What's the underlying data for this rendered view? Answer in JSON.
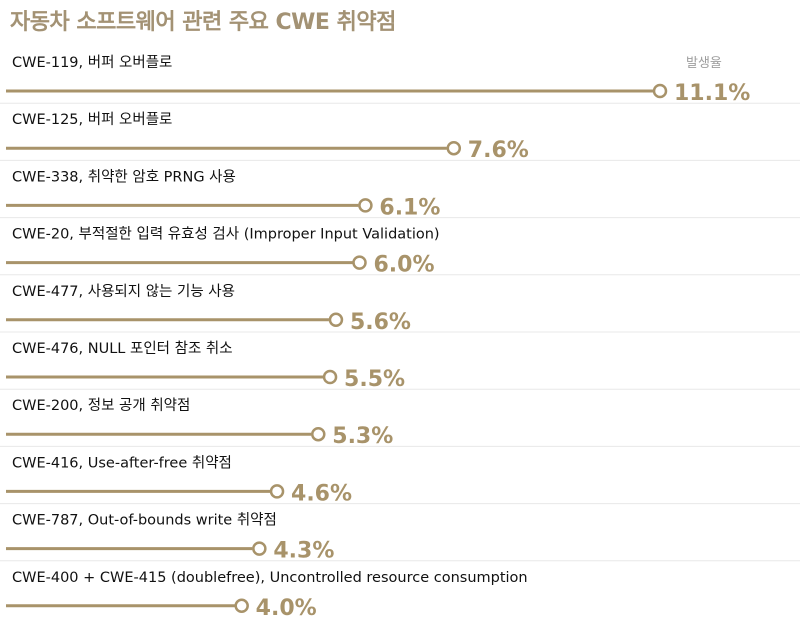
{
  "title": "자동차 소프트웨어 관련 주요 CWE 취약점",
  "header": {
    "column_label": "발생율"
  },
  "colors": {
    "accent": "#a8936a",
    "title": "#a39274",
    "label_text": "#111111",
    "divider": "#e8e8e8"
  },
  "chart_data": {
    "type": "bar",
    "title": "자동차 소프트웨어 관련 주요 CWE 취약점",
    "value_header": "발생율",
    "unit": "%",
    "categories": [
      "CWE-119, 버퍼 오버플로",
      "CWE-125, 버퍼 오버플로",
      "CWE-338, 취약한 암호 PRNG 사용",
      "CWE-20, 부적절한 입력 유효성 검사 (Improper Input Validation)",
      "CWE-477, 사용되지 않는 기능 사용",
      "CWE-476, NULL 포인터 참조 취소",
      "CWE-200, 정보 공개 취약점",
      "CWE-416, Use-after-free 취약점",
      "CWE-787, Out-of-bounds write 취약점",
      "CWE-400 + CWE-415 (doublefree), Uncontrolled resource consumption"
    ],
    "values": [
      11.1,
      7.6,
      6.1,
      6.0,
      5.6,
      5.5,
      5.3,
      4.6,
      4.3,
      4.0
    ],
    "value_labels": [
      "11.1%",
      "7.6%",
      "6.1%",
      "6.0%",
      "5.6%",
      "5.5%",
      "5.3%",
      "4.6%",
      "4.3%",
      "4.0%"
    ]
  }
}
